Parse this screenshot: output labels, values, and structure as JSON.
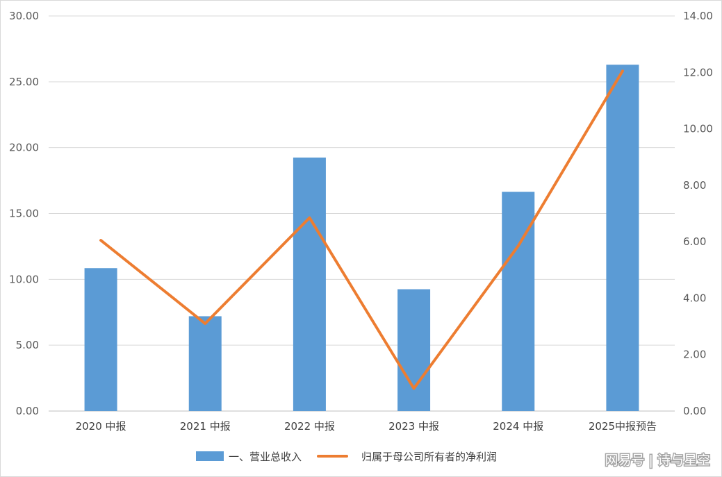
{
  "chart_data": {
    "type": "bar",
    "categories": [
      "2020 中报",
      "2021 中报",
      "2022 中报",
      "2023 中报",
      "2024 中报",
      "2025中报预告"
    ],
    "series": [
      {
        "name": "一、营业总收入",
        "type": "bar",
        "axis": "left",
        "values": [
          10.85,
          7.2,
          19.25,
          9.25,
          16.65,
          26.3
        ],
        "color": "#5b9bd5"
      },
      {
        "name": "归属于母公司所有者的净利润",
        "type": "line",
        "axis": "right",
        "values": [
          6.05,
          3.1,
          6.85,
          0.8,
          5.85,
          12.05
        ],
        "color": "#ed7d31"
      }
    ],
    "y_left": {
      "min": 0,
      "max": 30,
      "step": 5,
      "ticks": [
        "0.00",
        "5.00",
        "10.00",
        "15.00",
        "20.00",
        "25.00",
        "30.00"
      ]
    },
    "y_right": {
      "min": 0,
      "max": 14,
      "step": 2,
      "ticks": [
        "0.00",
        "2.00",
        "4.00",
        "6.00",
        "8.00",
        "10.00",
        "12.00",
        "14.00"
      ]
    },
    "grid": true,
    "legend_position": "bottom"
  },
  "watermark": {
    "text": "网易号 | 诗与星空"
  }
}
